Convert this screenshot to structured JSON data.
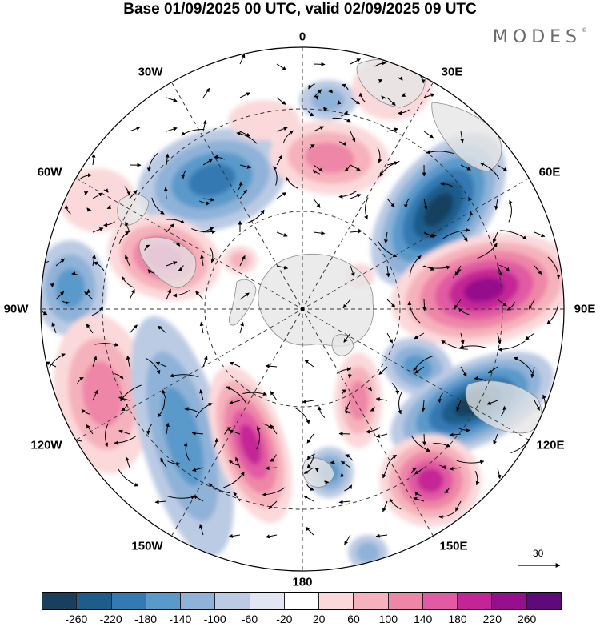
{
  "title": "Base 01/09/2025 00 UTC, valid 02/09/2025 09 UTC",
  "brand": "MODES",
  "brand_mark": "©",
  "longitude_labels": {
    "n0": "0",
    "e30": "30E",
    "e60": "60E",
    "e90": "90E",
    "e120": "120E",
    "e150": "150E",
    "s180": "180",
    "w150": "150W",
    "w120": "120W",
    "w90": "90W",
    "w60": "60W",
    "w30": "30W"
  },
  "vector_reference": {
    "label": "30",
    "icon": "arrow-right-icon"
  },
  "colorbar": {
    "colors": [
      "#183f5e",
      "#1e5c8a",
      "#3579b3",
      "#5a9acb",
      "#8fb2d8",
      "#bccbe4",
      "#e2e6f2",
      "#ffffff",
      "#fbd9db",
      "#f6b2bc",
      "#ee86a7",
      "#e15aa3",
      "#c42596",
      "#960f8c",
      "#5e0a7a"
    ],
    "tick_labels": [
      "-260",
      "-220",
      "-180",
      "-140",
      "-100",
      "-60",
      "-20",
      "20",
      "60",
      "100",
      "140",
      "180",
      "220",
      "260"
    ]
  },
  "palette": {
    "land": "#e6e6e6",
    "coast": "#8a8a8a",
    "grid": "#333333"
  }
}
